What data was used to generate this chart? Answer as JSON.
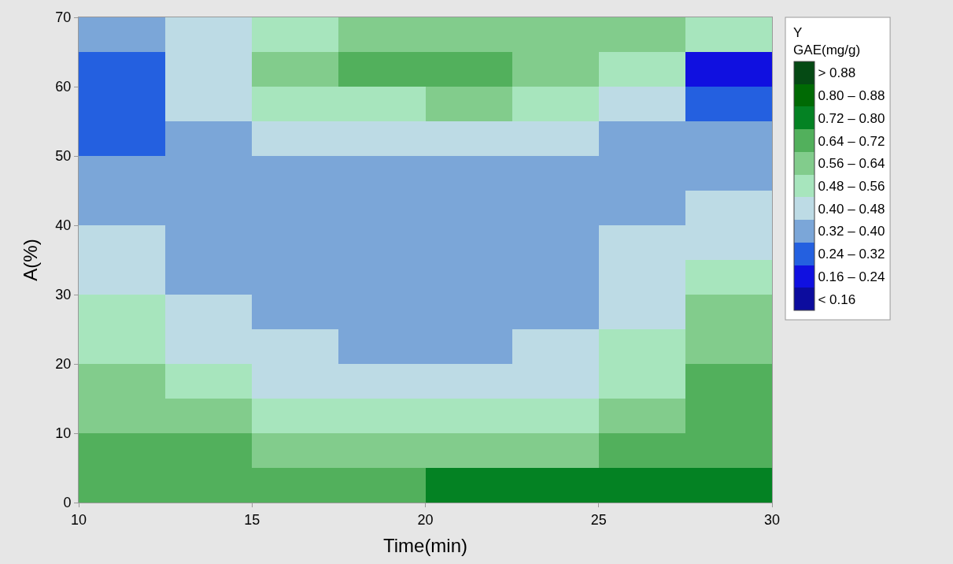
{
  "chart_data": {
    "type": "heatmap",
    "xlabel": "Time(min)",
    "ylabel": "A(%)",
    "clabel": "Y\nGAE(mg/g)",
    "x": [
      11.25,
      13.75,
      16.25,
      18.75,
      21.25,
      23.75,
      26.25,
      28.75
    ],
    "y": [
      2.5,
      7.5,
      12.5,
      17.5,
      22.5,
      27.5,
      32.5,
      37.5,
      42.5,
      47.5,
      52.5,
      57.5,
      62.5,
      67.5
    ],
    "cells": [
      [
        0.69,
        0.7,
        0.705,
        0.71,
        0.72,
        0.73,
        0.73,
        0.73
      ],
      [
        0.665,
        0.64,
        0.62,
        0.61,
        0.61,
        0.63,
        0.67,
        0.7
      ],
      [
        0.63,
        0.58,
        0.54,
        0.52,
        0.52,
        0.54,
        0.6,
        0.68
      ],
      [
        0.59,
        0.52,
        0.47,
        0.45,
        0.455,
        0.475,
        0.54,
        0.65
      ],
      [
        0.545,
        0.47,
        0.42,
        0.395,
        0.395,
        0.42,
        0.485,
        0.62
      ],
      [
        0.5,
        0.425,
        0.385,
        0.37,
        0.37,
        0.395,
        0.45,
        0.57
      ],
      [
        0.46,
        0.385,
        0.36,
        0.35,
        0.35,
        0.37,
        0.42,
        0.52
      ],
      [
        0.425,
        0.36,
        0.345,
        0.34,
        0.34,
        0.355,
        0.4,
        0.47
      ],
      [
        0.385,
        0.35,
        0.34,
        0.335,
        0.335,
        0.35,
        0.39,
        0.42
      ],
      [
        0.355,
        0.35,
        0.35,
        0.355,
        0.355,
        0.355,
        0.39,
        0.39
      ],
      [
        0.31,
        0.37,
        0.4,
        0.42,
        0.43,
        0.41,
        0.36,
        0.34
      ],
      [
        0.27,
        0.42,
        0.48,
        0.55,
        0.57,
        0.53,
        0.4,
        0.24
      ],
      [
        0.27,
        0.45,
        0.57,
        0.66,
        0.66,
        0.6,
        0.5,
        0.23
      ],
      [
        0.38,
        0.47,
        0.53,
        0.59,
        0.59,
        0.62,
        0.62,
        0.55
      ]
    ],
    "clim": [
      0.08,
      0.96
    ],
    "colors": [
      "#0c0c9e",
      "#1010e0",
      "#2460e0",
      "#7ba6d8",
      "#bddbe5",
      "#a7e5bd",
      "#82cc8c",
      "#52b05c",
      "#048223",
      "#006a04",
      "#054a14"
    ],
    "cticks": [
      {
        "value": 0.12,
        "label": "< 0.16"
      },
      {
        "value": 0.2,
        "label": "0.16 – 0.24"
      },
      {
        "value": 0.28,
        "label": "0.24 – 0.32"
      },
      {
        "value": 0.36,
        "label": "0.32 – 0.40"
      },
      {
        "value": 0.44,
        "label": "0.40 – 0.48"
      },
      {
        "value": 0.52,
        "label": "0.48 – 0.56"
      },
      {
        "value": 0.6,
        "label": "0.56 – 0.64"
      },
      {
        "value": 0.68,
        "label": "0.64 – 0.72"
      },
      {
        "value": 0.76,
        "label": "0.72 – 0.80"
      },
      {
        "value": 0.84,
        "label": "0.80 – 0.88"
      },
      {
        "value": 0.92,
        "label": "> 0.88"
      }
    ],
    "xlim": [
      10,
      30
    ],
    "xticks": [
      10,
      15,
      20,
      25,
      30
    ],
    "ylim": [
      0,
      70
    ],
    "yticks": [
      0,
      10,
      20,
      30,
      40,
      50,
      60,
      70
    ]
  }
}
